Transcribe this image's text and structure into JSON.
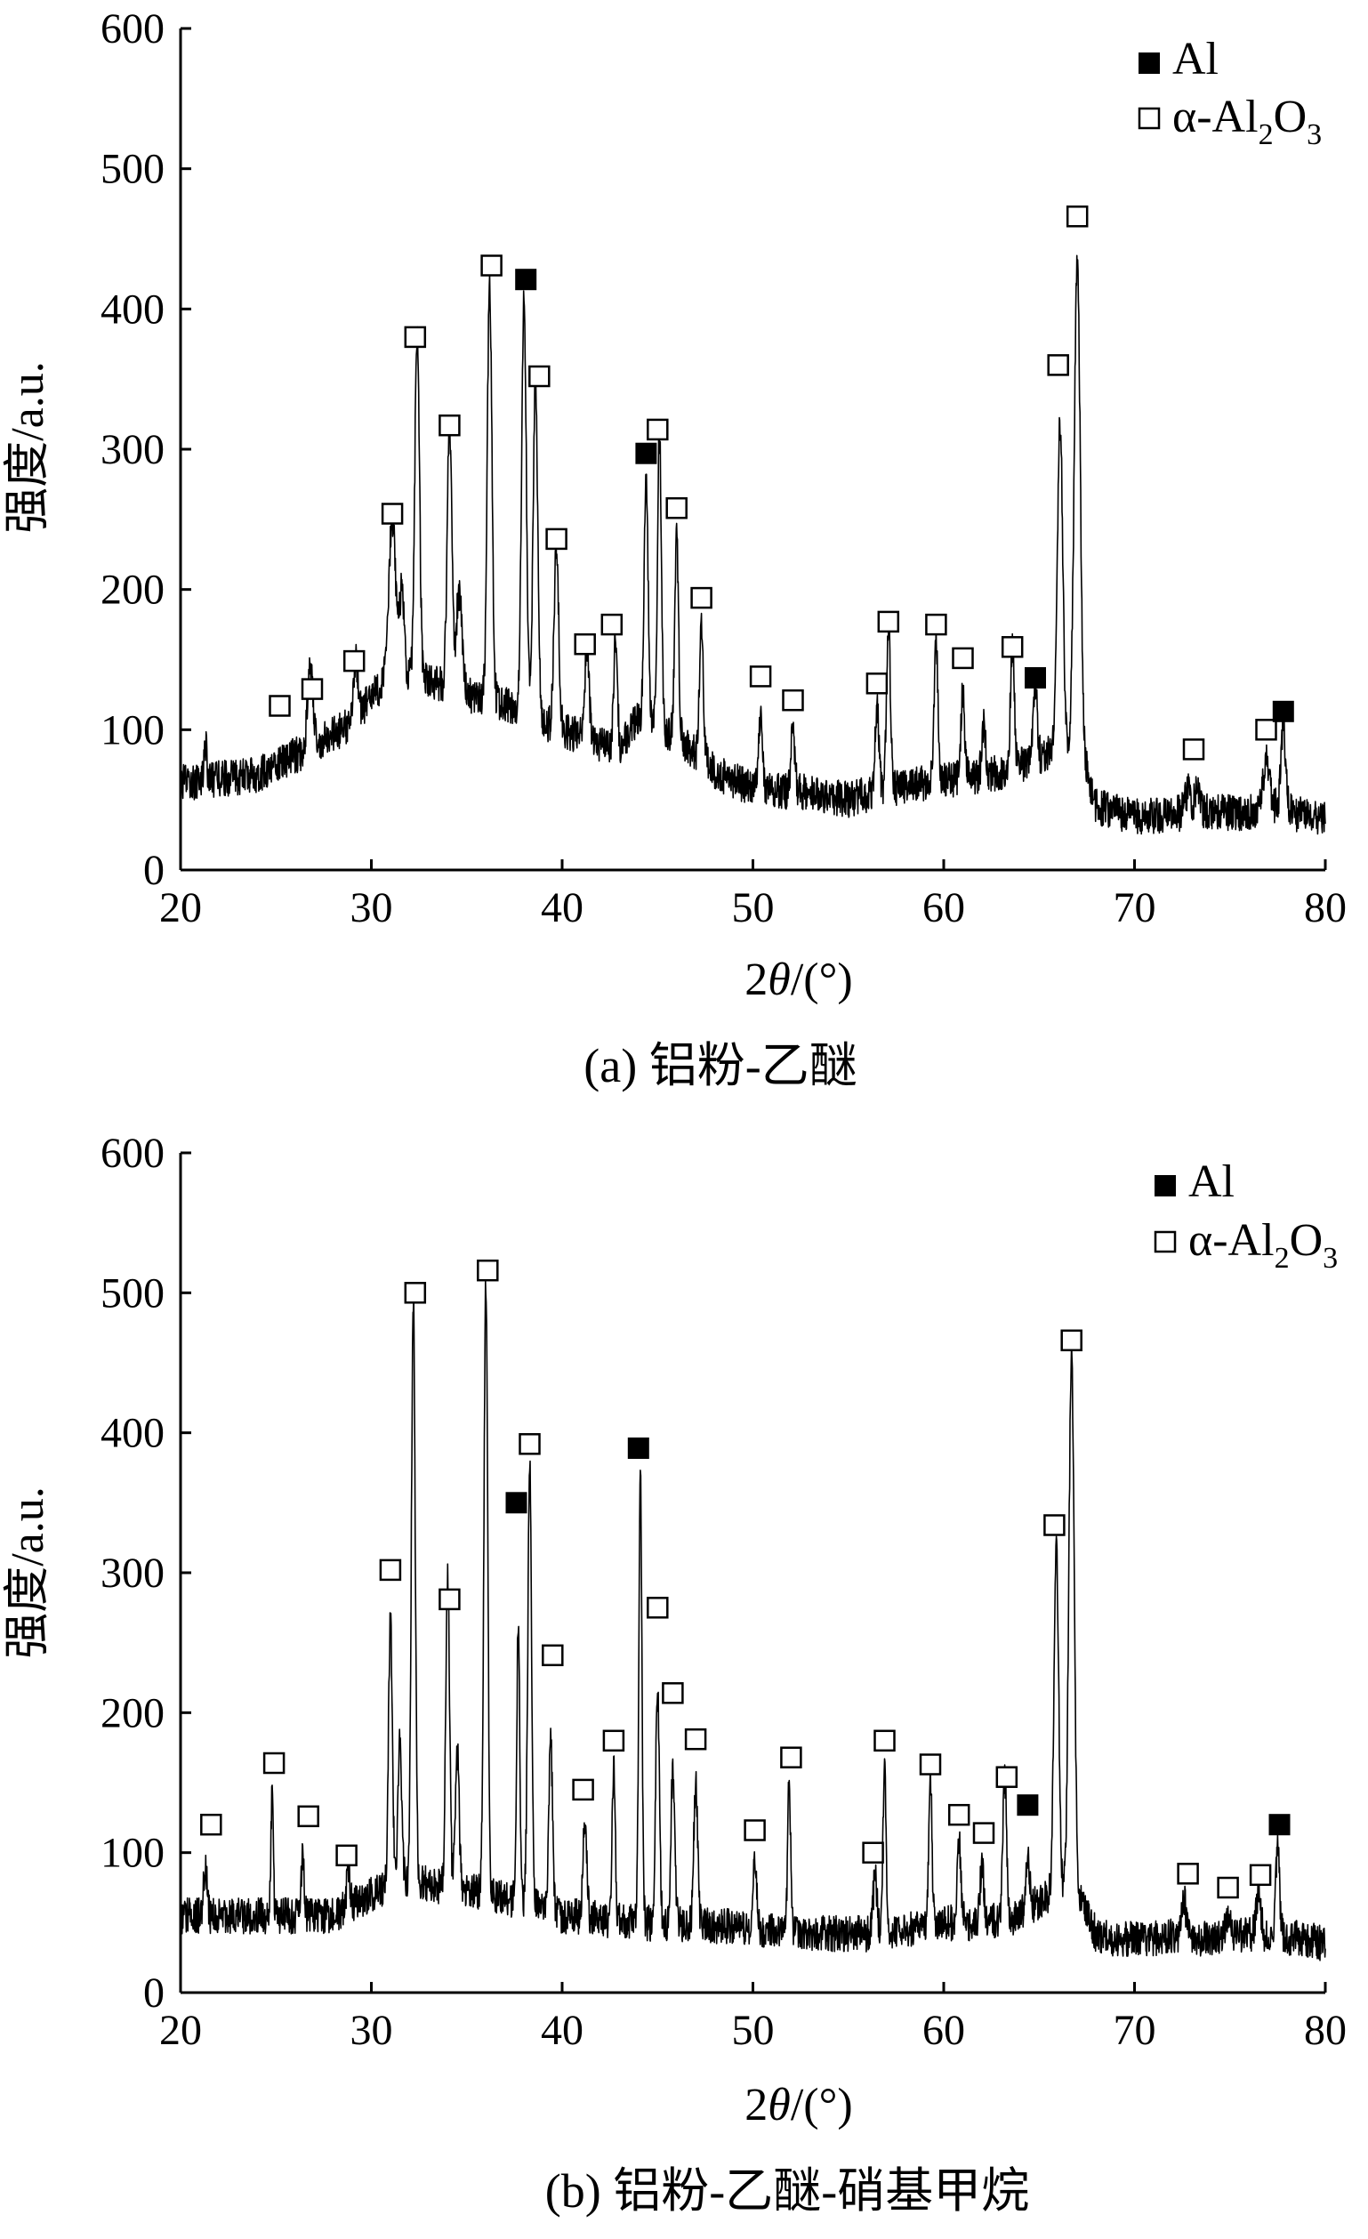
{
  "chart_data": [
    {
      "type": "line",
      "panel": "a",
      "caption": "(a) 铝粉-乙醚",
      "xlabel_prefix": "2",
      "xlabel_symbol": "θ",
      "xlabel_unit": "/(°)",
      "ylabel": "强度/a.u.",
      "xlim": [
        20,
        80
      ],
      "ylim": [
        0,
        600
      ],
      "x_ticks": [
        20,
        30,
        40,
        50,
        60,
        70,
        80
      ],
      "y_ticks": [
        0,
        100,
        200,
        300,
        400,
        500,
        600
      ],
      "grid": false,
      "legend": {
        "placement": "top-right",
        "entries": [
          {
            "label": "Al",
            "marker": "filled-square"
          },
          {
            "label_main": "α-Al",
            "label_sub1": "2",
            "label_mid": "O",
            "label_sub2": "3",
            "marker": "open-square"
          }
        ]
      },
      "baseline": [
        [
          20,
          62
        ],
        [
          24,
          68
        ],
        [
          27,
          88
        ],
        [
          29,
          105
        ],
        [
          31,
          140
        ],
        [
          33,
          135
        ],
        [
          35,
          125
        ],
        [
          37,
          118
        ],
        [
          39,
          105
        ],
        [
          41,
          95
        ],
        [
          43,
          85
        ],
        [
          44,
          110
        ],
        [
          46,
          95
        ],
        [
          48,
          70
        ],
        [
          50,
          58
        ],
        [
          53,
          55
        ],
        [
          55,
          50
        ],
        [
          57,
          58
        ],
        [
          59,
          62
        ],
        [
          61,
          65
        ],
        [
          63,
          70
        ],
        [
          65,
          80
        ],
        [
          66,
          90
        ],
        [
          67.5,
          70
        ],
        [
          68,
          45
        ],
        [
          70,
          38
        ],
        [
          72,
          40
        ],
        [
          74,
          42
        ],
        [
          76,
          40
        ],
        [
          77,
          48
        ],
        [
          78,
          42
        ],
        [
          80,
          35
        ]
      ],
      "peaks": [
        [
          21.3,
          25,
          0.08
        ],
        [
          26.8,
          55,
          0.15
        ],
        [
          29.2,
          40,
          0.12
        ],
        [
          31.1,
          110,
          0.18
        ],
        [
          31.6,
          60,
          0.12
        ],
        [
          32.4,
          250,
          0.12
        ],
        [
          34.1,
          190,
          0.12
        ],
        [
          34.6,
          70,
          0.15
        ],
        [
          36.2,
          300,
          0.12
        ],
        [
          38.0,
          300,
          0.12
        ],
        [
          38.6,
          240,
          0.12
        ],
        [
          39.7,
          130,
          0.12
        ],
        [
          41.3,
          60,
          0.12
        ],
        [
          42.8,
          80,
          0.1
        ],
        [
          44.4,
          180,
          0.1
        ],
        [
          45.1,
          210,
          0.1
        ],
        [
          46.0,
          140,
          0.1
        ],
        [
          47.3,
          100,
          0.1
        ],
        [
          50.4,
          50,
          0.1
        ],
        [
          52.1,
          45,
          0.1
        ],
        [
          56.5,
          60,
          0.1
        ],
        [
          57.1,
          120,
          0.1
        ],
        [
          59.6,
          100,
          0.1
        ],
        [
          61.0,
          60,
          0.1
        ],
        [
          62.1,
          35,
          0.1
        ],
        [
          63.6,
          85,
          0.1
        ],
        [
          64.8,
          50,
          0.1
        ],
        [
          66.1,
          230,
          0.14
        ],
        [
          67.0,
          355,
          0.16
        ],
        [
          72.8,
          15,
          0.15
        ],
        [
          73.3,
          20,
          0.12
        ],
        [
          76.9,
          30,
          0.15
        ],
        [
          77.8,
          60,
          0.12
        ]
      ],
      "markers": [
        {
          "phase": "α-Al2O3",
          "x": 25.2,
          "y": 117
        },
        {
          "phase": "α-Al2O3",
          "x": 26.9,
          "y": 129
        },
        {
          "phase": "α-Al2O3",
          "x": 29.1,
          "y": 149
        },
        {
          "phase": "α-Al2O3",
          "x": 31.1,
          "y": 254
        },
        {
          "phase": "α-Al2O3",
          "x": 32.3,
          "y": 380
        },
        {
          "phase": "α-Al2O3",
          "x": 34.1,
          "y": 317
        },
        {
          "phase": "α-Al2O3",
          "x": 36.3,
          "y": 431
        },
        {
          "phase": "Al",
          "x": 38.1,
          "y": 421
        },
        {
          "phase": "α-Al2O3",
          "x": 38.8,
          "y": 352
        },
        {
          "phase": "α-Al2O3",
          "x": 39.7,
          "y": 236
        },
        {
          "phase": "α-Al2O3",
          "x": 41.2,
          "y": 161
        },
        {
          "phase": "α-Al2O3",
          "x": 42.6,
          "y": 175
        },
        {
          "phase": "Al",
          "x": 44.4,
          "y": 297
        },
        {
          "phase": "α-Al2O3",
          "x": 45.0,
          "y": 314
        },
        {
          "phase": "α-Al2O3",
          "x": 46.0,
          "y": 258
        },
        {
          "phase": "α-Al2O3",
          "x": 47.3,
          "y": 194
        },
        {
          "phase": "α-Al2O3",
          "x": 50.4,
          "y": 138
        },
        {
          "phase": "α-Al2O3",
          "x": 52.1,
          "y": 121
        },
        {
          "phase": "α-Al2O3",
          "x": 56.5,
          "y": 133
        },
        {
          "phase": "α-Al2O3",
          "x": 57.1,
          "y": 177
        },
        {
          "phase": "α-Al2O3",
          "x": 59.6,
          "y": 175
        },
        {
          "phase": "α-Al2O3",
          "x": 61.0,
          "y": 151
        },
        {
          "phase": "α-Al2O3",
          "x": 63.6,
          "y": 159
        },
        {
          "phase": "Al",
          "x": 64.8,
          "y": 137
        },
        {
          "phase": "α-Al2O3",
          "x": 66.0,
          "y": 360
        },
        {
          "phase": "α-Al2O3",
          "x": 67.0,
          "y": 466
        },
        {
          "phase": "α-Al2O3",
          "x": 73.1,
          "y": 86
        },
        {
          "phase": "α-Al2O3",
          "x": 76.9,
          "y": 100
        },
        {
          "phase": "Al",
          "x": 77.8,
          "y": 113
        }
      ]
    },
    {
      "type": "line",
      "panel": "b",
      "caption": "(b) 铝粉-乙醚-硝基甲烷",
      "xlabel_prefix": "2",
      "xlabel_symbol": "θ",
      "xlabel_unit": "/(°)",
      "ylabel": "强度/a.u.",
      "xlim": [
        20,
        80
      ],
      "ylim": [
        0,
        600
      ],
      "x_ticks": [
        20,
        30,
        40,
        50,
        60,
        70,
        80
      ],
      "y_ticks": [
        0,
        100,
        200,
        300,
        400,
        500,
        600
      ],
      "grid": false,
      "legend": {
        "placement": "top-right",
        "entries": [
          {
            "label": "Al",
            "marker": "filled-square"
          },
          {
            "label_main": "α-Al",
            "label_sub1": "2",
            "label_mid": "O",
            "label_sub2": "3",
            "marker": "open-square"
          }
        ]
      },
      "baseline": [
        [
          20,
          55
        ],
        [
          24,
          55
        ],
        [
          28,
          55
        ],
        [
          30,
          70
        ],
        [
          32,
          80
        ],
        [
          34,
          75
        ],
        [
          36,
          70
        ],
        [
          38,
          65
        ],
        [
          40,
          55
        ],
        [
          44,
          50
        ],
        [
          48,
          48
        ],
        [
          52,
          42
        ],
        [
          56,
          42
        ],
        [
          58,
          45
        ],
        [
          60,
          50
        ],
        [
          62,
          50
        ],
        [
          64,
          55
        ],
        [
          65,
          65
        ],
        [
          66,
          75
        ],
        [
          67.5,
          60
        ],
        [
          68,
          40
        ],
        [
          70,
          38
        ],
        [
          72,
          40
        ],
        [
          74,
          38
        ],
        [
          76,
          42
        ],
        [
          78,
          40
        ],
        [
          80,
          35
        ]
      ],
      "peaks": [
        [
          21.3,
          40,
          0.08
        ],
        [
          24.8,
          90,
          0.06
        ],
        [
          26.4,
          40,
          0.08
        ],
        [
          28.8,
          25,
          0.1
        ],
        [
          31.0,
          195,
          0.1
        ],
        [
          31.5,
          100,
          0.1
        ],
        [
          32.2,
          420,
          0.1
        ],
        [
          34.0,
          220,
          0.1
        ],
        [
          34.5,
          100,
          0.1
        ],
        [
          36.0,
          440,
          0.1
        ],
        [
          37.7,
          200,
          0.08
        ],
        [
          38.3,
          310,
          0.1
        ],
        [
          39.4,
          120,
          0.1
        ],
        [
          41.2,
          70,
          0.1
        ],
        [
          42.7,
          110,
          0.08
        ],
        [
          44.1,
          330,
          0.08
        ],
        [
          45.0,
          165,
          0.1
        ],
        [
          45.8,
          110,
          0.1
        ],
        [
          47.0,
          100,
          0.1
        ],
        [
          50.1,
          50,
          0.1
        ],
        [
          51.9,
          110,
          0.08
        ],
        [
          56.4,
          40,
          0.1
        ],
        [
          56.9,
          120,
          0.08
        ],
        [
          59.3,
          110,
          0.08
        ],
        [
          60.8,
          60,
          0.1
        ],
        [
          62.0,
          40,
          0.1
        ],
        [
          63.2,
          100,
          0.1
        ],
        [
          64.4,
          40,
          0.1
        ],
        [
          65.9,
          250,
          0.12
        ],
        [
          66.7,
          390,
          0.14
        ],
        [
          72.6,
          25,
          0.12
        ],
        [
          74.9,
          15,
          0.12
        ],
        [
          76.5,
          30,
          0.12
        ],
        [
          77.5,
          65,
          0.1
        ]
      ],
      "markers": [
        {
          "phase": "α-Al2O3",
          "x": 21.6,
          "y": 120
        },
        {
          "phase": "α-Al2O3",
          "x": 24.9,
          "y": 164
        },
        {
          "phase": "α-Al2O3",
          "x": 26.7,
          "y": 126
        },
        {
          "phase": "α-Al2O3",
          "x": 28.7,
          "y": 98
        },
        {
          "phase": "α-Al2O3",
          "x": 31.0,
          "y": 302
        },
        {
          "phase": "α-Al2O3",
          "x": 32.3,
          "y": 500
        },
        {
          "phase": "α-Al2O3",
          "x": 34.1,
          "y": 281
        },
        {
          "phase": "α-Al2O3",
          "x": 36.1,
          "y": 516
        },
        {
          "phase": "Al",
          "x": 37.6,
          "y": 350
        },
        {
          "phase": "α-Al2O3",
          "x": 38.3,
          "y": 392
        },
        {
          "phase": "α-Al2O3",
          "x": 39.5,
          "y": 241
        },
        {
          "phase": "α-Al2O3",
          "x": 41.1,
          "y": 145
        },
        {
          "phase": "α-Al2O3",
          "x": 42.7,
          "y": 180
        },
        {
          "phase": "Al",
          "x": 44.0,
          "y": 389
        },
        {
          "phase": "α-Al2O3",
          "x": 45.0,
          "y": 275
        },
        {
          "phase": "α-Al2O3",
          "x": 45.8,
          "y": 214
        },
        {
          "phase": "α-Al2O3",
          "x": 47.0,
          "y": 181
        },
        {
          "phase": "α-Al2O3",
          "x": 50.1,
          "y": 116
        },
        {
          "phase": "α-Al2O3",
          "x": 52.0,
          "y": 168
        },
        {
          "phase": "α-Al2O3",
          "x": 56.3,
          "y": 100
        },
        {
          "phase": "α-Al2O3",
          "x": 56.9,
          "y": 180
        },
        {
          "phase": "α-Al2O3",
          "x": 59.3,
          "y": 163
        },
        {
          "phase": "α-Al2O3",
          "x": 60.8,
          "y": 127
        },
        {
          "phase": "α-Al2O3",
          "x": 62.1,
          "y": 114
        },
        {
          "phase": "α-Al2O3",
          "x": 63.3,
          "y": 154
        },
        {
          "phase": "Al",
          "x": 64.4,
          "y": 134
        },
        {
          "phase": "α-Al2O3",
          "x": 65.8,
          "y": 334
        },
        {
          "phase": "α-Al2O3",
          "x": 66.7,
          "y": 466
        },
        {
          "phase": "α-Al2O3",
          "x": 72.8,
          "y": 85
        },
        {
          "phase": "α-Al2O3",
          "x": 74.9,
          "y": 75
        },
        {
          "phase": "α-Al2O3",
          "x": 76.6,
          "y": 84
        },
        {
          "phase": "Al",
          "x": 77.6,
          "y": 120
        }
      ]
    }
  ]
}
